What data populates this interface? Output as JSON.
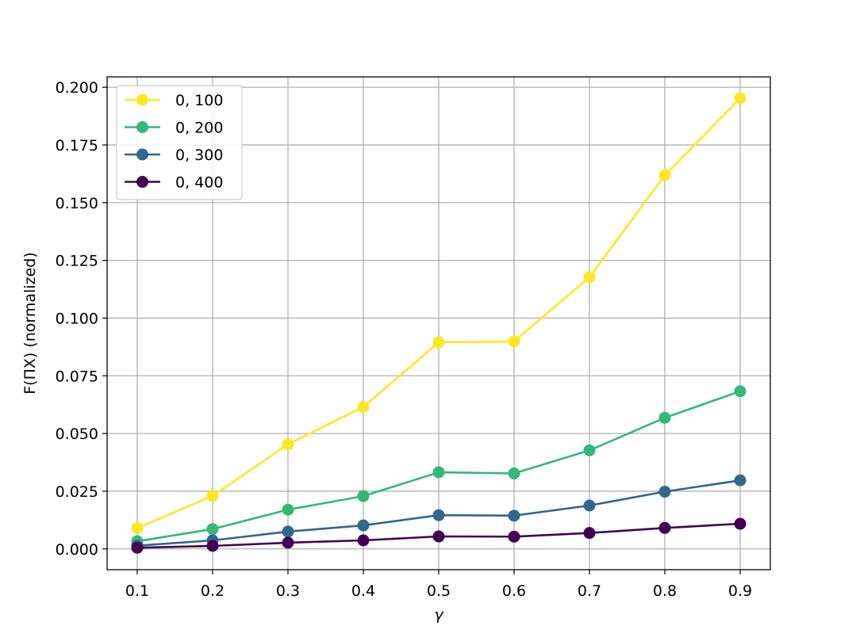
{
  "chart_data": {
    "type": "line",
    "title": "",
    "xlabel": "γ",
    "ylabel": "F(ΠX) (normalized)",
    "x": [
      0.1,
      0.2,
      0.3,
      0.4,
      0.5,
      0.6,
      0.7,
      0.8,
      0.9
    ],
    "x_tick_labels": [
      "0.1",
      "0.2",
      "0.3",
      "0.4",
      "0.5",
      "0.6",
      "0.7",
      "0.8",
      "0.9"
    ],
    "y_ticks": [
      0.0,
      0.025,
      0.05,
      0.075,
      0.1,
      0.125,
      0.15,
      0.175,
      0.2
    ],
    "y_tick_labels": [
      "0.000",
      "0.025",
      "0.050",
      "0.075",
      "0.100",
      "0.125",
      "0.150",
      "0.175",
      "0.200"
    ],
    "xlim": [
      0.06,
      0.94
    ],
    "ylim": [
      -0.009,
      0.2045
    ],
    "grid": true,
    "legend_position": "top-left",
    "series": [
      {
        "name": "0, 100",
        "color": "#fde725",
        "values": [
          0.009,
          0.023,
          0.0453,
          0.0615,
          0.0895,
          0.0899,
          0.1177,
          0.1619,
          0.1952
        ]
      },
      {
        "name": "0, 200",
        "color": "#35b779",
        "values": [
          0.0033,
          0.0086,
          0.017,
          0.0229,
          0.0332,
          0.0327,
          0.0427,
          0.0568,
          0.0683
        ]
      },
      {
        "name": "0, 300",
        "color": "#31688e",
        "values": [
          0.0014,
          0.0037,
          0.0075,
          0.0102,
          0.0146,
          0.0144,
          0.0188,
          0.0248,
          0.0297
        ]
      },
      {
        "name": "0, 400",
        "color": "#440154",
        "values": [
          0.0005,
          0.0013,
          0.0027,
          0.0037,
          0.0054,
          0.0053,
          0.0069,
          0.0091,
          0.0109
        ]
      }
    ]
  }
}
